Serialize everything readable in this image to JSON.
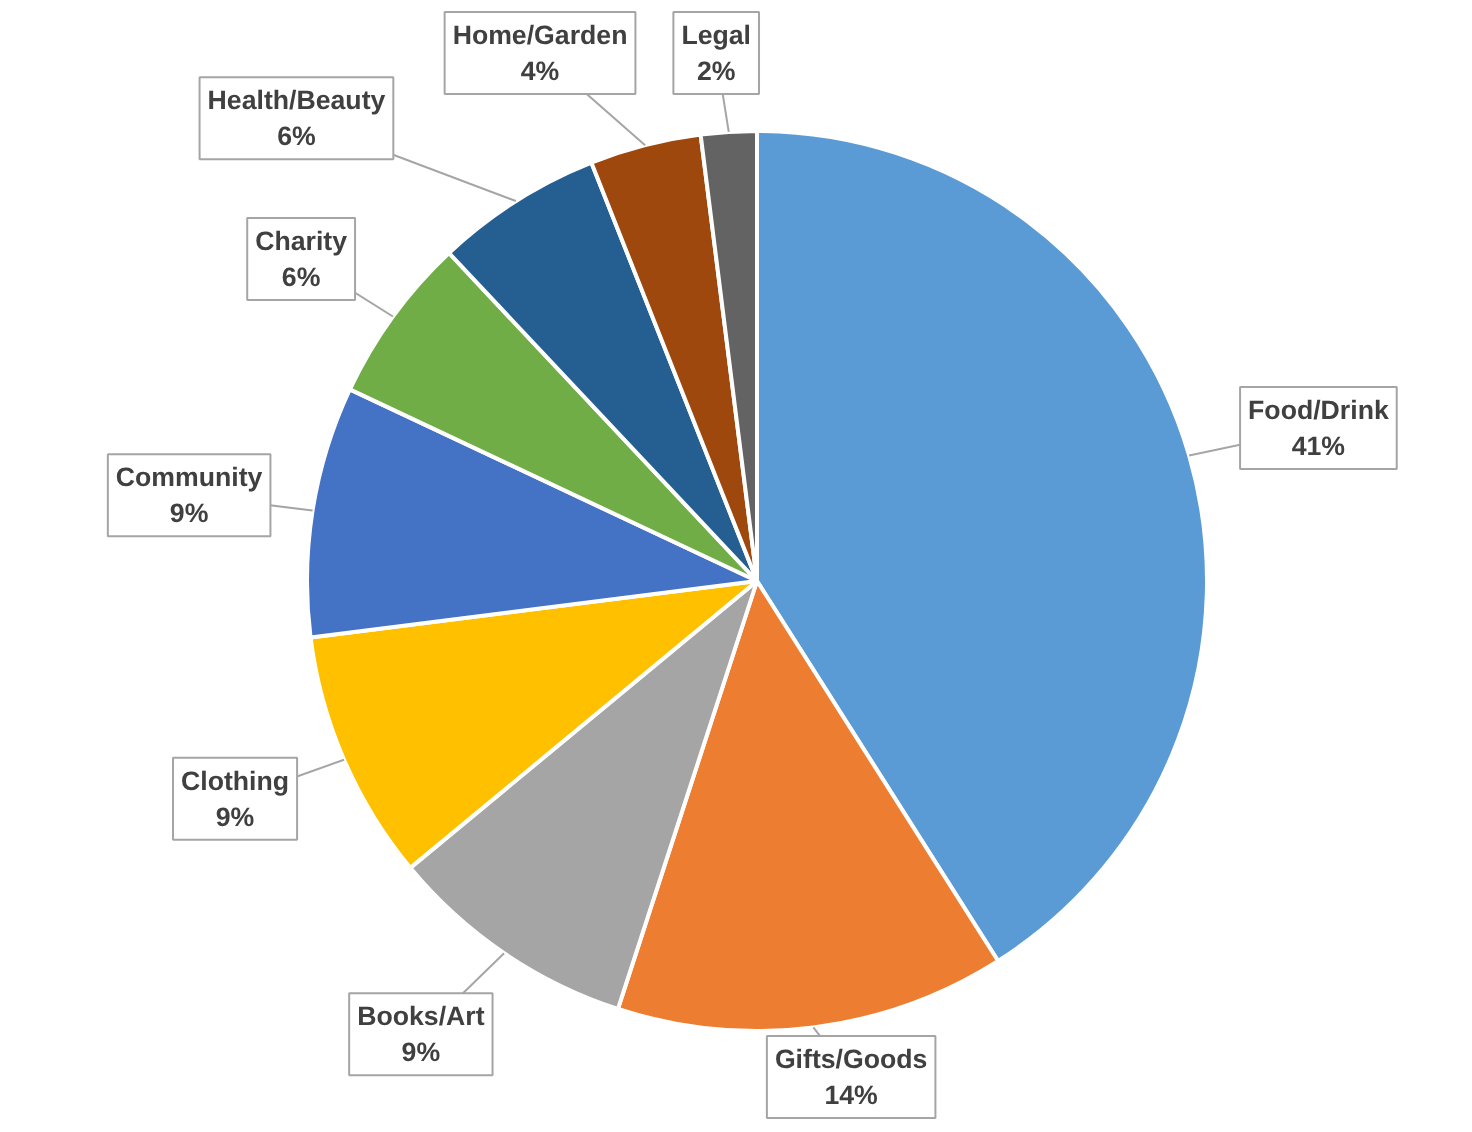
{
  "chart_data": {
    "type": "pie",
    "categories": [
      "Food/Drink",
      "Gifts/Goods",
      "Books/Art",
      "Clothing",
      "Community",
      "Charity",
      "Health/Beauty",
      "Home/Garden",
      "Legal"
    ],
    "values": [
      41,
      14,
      9,
      9,
      9,
      6,
      6,
      4,
      2
    ],
    "value_labels": [
      "41%",
      "14%",
      "9%",
      "9%",
      "9%",
      "6%",
      "6%",
      "4%",
      "2%"
    ],
    "colors": [
      "#5b9bd5",
      "#ed7d31",
      "#a5a5a5",
      "#ffc000",
      "#4472c4",
      "#70ad47",
      "#255e91",
      "#9e480e",
      "#636363"
    ]
  }
}
